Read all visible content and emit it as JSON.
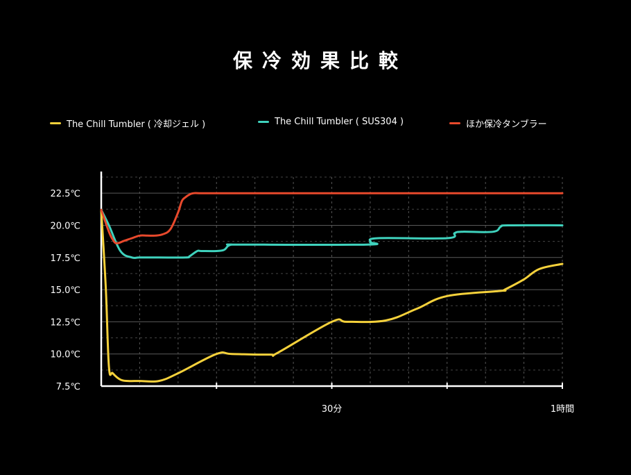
{
  "chart_data": {
    "type": "line",
    "title": "保冷効果比較",
    "xlabel": "",
    "ylabel": "",
    "xlim": [
      0,
      60
    ],
    "ylim": [
      7.5,
      23.75
    ],
    "y_ticks": [
      7.5,
      10.0,
      12.5,
      15.0,
      17.5,
      20.0,
      22.5
    ],
    "y_tick_labels": [
      "7.5℃",
      "10.0℃",
      "12.5℃",
      "15.0℃",
      "17.5℃",
      "20.0℃",
      "22.5℃"
    ],
    "x_ticks": [
      30,
      60
    ],
    "x_tick_labels": [
      "30分",
      "1時間"
    ],
    "grid": true,
    "legend_position": "top",
    "series": [
      {
        "name": "The Chill Tumbler ( 冷却ジェル )",
        "color": "#f5d13b",
        "x": [
          0,
          0.6,
          1.0,
          1.5,
          2.5,
          3.5,
          5,
          7.5,
          10,
          15,
          17,
          22,
          23,
          30,
          32,
          37,
          41,
          45,
          52,
          52.5,
          55,
          57,
          60
        ],
        "y": [
          21.2,
          15.0,
          9.0,
          8.5,
          8.0,
          7.9,
          7.9,
          7.9,
          8.5,
          10.0,
          10.0,
          9.95,
          10.1,
          12.5,
          12.5,
          12.6,
          13.5,
          14.5,
          14.9,
          15.0,
          15.8,
          16.6,
          17.0
        ]
      },
      {
        "name": "The Chill Tumbler ( SUS304 )",
        "color": "#3fd2bd",
        "x": [
          0,
          1,
          2.5,
          4,
          5,
          7.5,
          11,
          11.5,
          12.5,
          13,
          15,
          16,
          16.5,
          17,
          18,
          34.5,
          35,
          36,
          45,
          46,
          47,
          51,
          52,
          53,
          60
        ],
        "y": [
          21.2,
          20.0,
          18.0,
          17.5,
          17.5,
          17.5,
          17.5,
          17.6,
          18.0,
          18.0,
          18.0,
          18.1,
          18.4,
          18.5,
          18.5,
          18.5,
          18.7,
          19.0,
          19.0,
          19.4,
          19.5,
          19.5,
          19.9,
          20.0,
          20.0
        ]
      },
      {
        "name": "ほか保冷タンブラー",
        "color": "#e8492c",
        "x": [
          0,
          1,
          1.5,
          2,
          3,
          4,
          5,
          6,
          7,
          8,
          9,
          10,
          10.5,
          11,
          11.5,
          12,
          13,
          15,
          30,
          45,
          60
        ],
        "y": [
          21.2,
          19.5,
          18.9,
          18.6,
          18.8,
          19.0,
          19.2,
          19.2,
          19.2,
          19.3,
          19.7,
          21.0,
          21.9,
          22.2,
          22.4,
          22.5,
          22.5,
          22.5,
          22.5,
          22.5,
          22.5
        ]
      }
    ]
  }
}
